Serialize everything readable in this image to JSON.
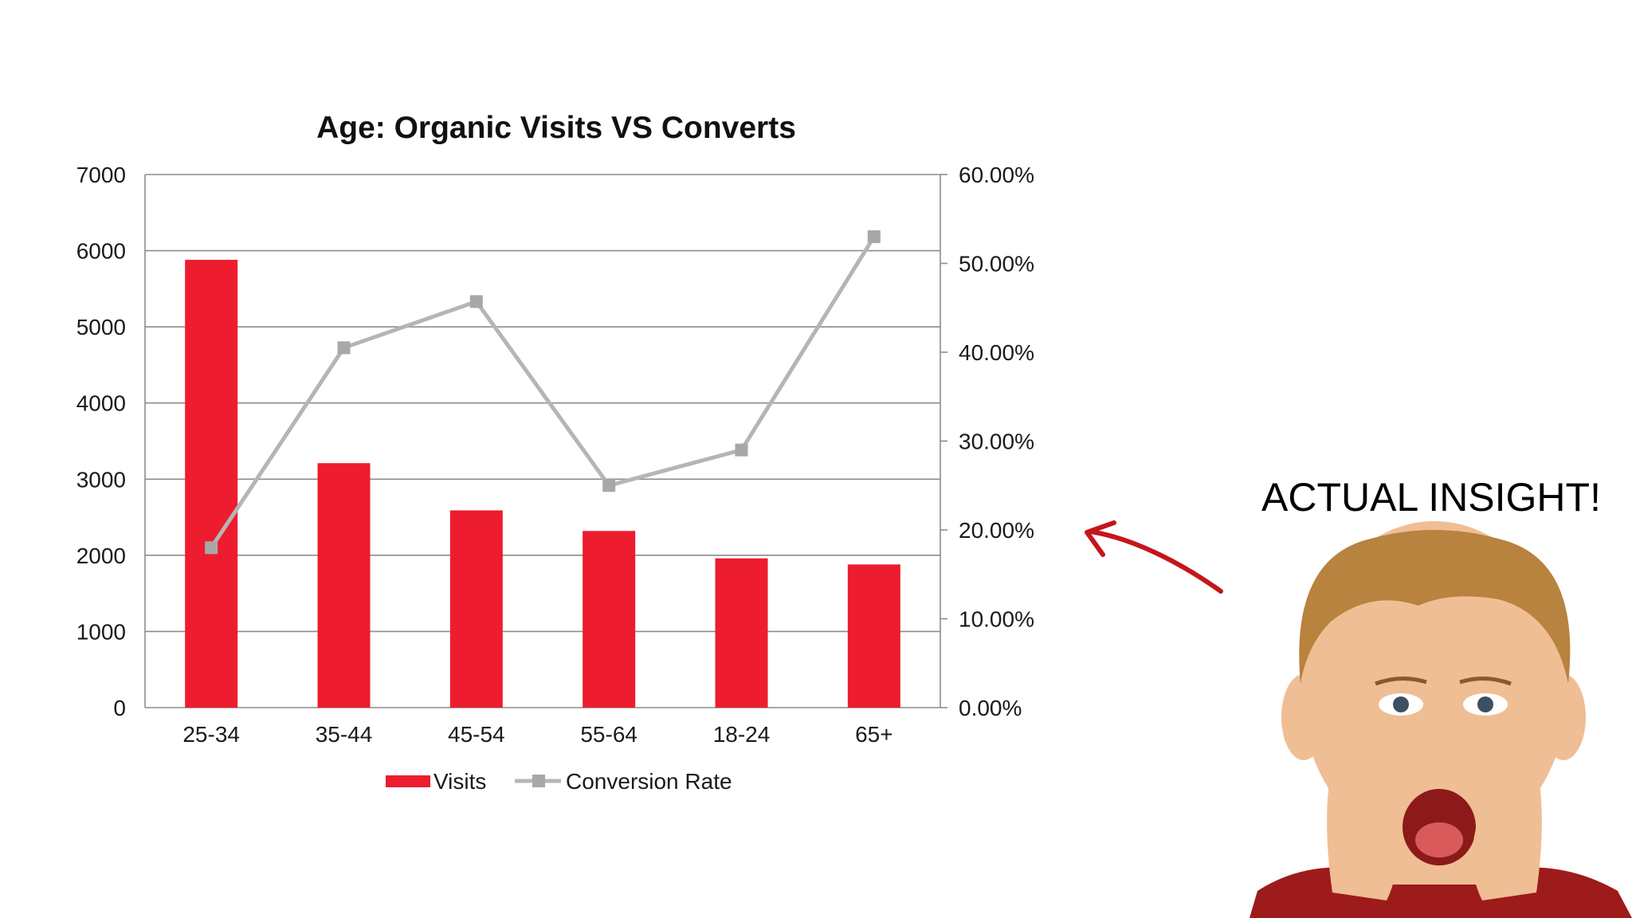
{
  "colors": {
    "bar": "#ED1C2E",
    "line": "#B5B5B5",
    "marker": "#A8A8A8",
    "grid": "#8C8C8C",
    "arrow": "#C4161C",
    "skin": "#F0BE94",
    "hair": "#B8823F",
    "sweater": "#9E1B1B"
  },
  "chart_data": {
    "type": "bar",
    "title": "Age: Organic Visits VS Converts",
    "categories": [
      "25-34",
      "35-44",
      "45-54",
      "55-64",
      "18-24",
      "65+"
    ],
    "series": [
      {
        "name": "Visits",
        "type": "bar",
        "axis": "left",
        "values": [
          5880,
          3210,
          2590,
          2320,
          1960,
          1880
        ]
      },
      {
        "name": "Conversion Rate",
        "type": "line",
        "axis": "right",
        "values": [
          18.0,
          40.5,
          45.7,
          25.0,
          29.0,
          53.0
        ]
      }
    ],
    "y_left": {
      "range": [
        0,
        7000
      ],
      "ticks": [
        "0",
        "1000",
        "2000",
        "3000",
        "4000",
        "5000",
        "6000",
        "7000"
      ]
    },
    "y_right": {
      "range": [
        0,
        60
      ],
      "ticks": [
        "0.00%",
        "10.00%",
        "20.00%",
        "30.00%",
        "40.00%",
        "50.00%",
        "60.00%"
      ]
    },
    "grid": true,
    "legend": "bottom"
  },
  "callout": {
    "text": "ACTUAL INSIGHT!",
    "arrow_icon": "hand-drawn-arrow-icon",
    "image_icon": "shocked-boy-photo"
  }
}
